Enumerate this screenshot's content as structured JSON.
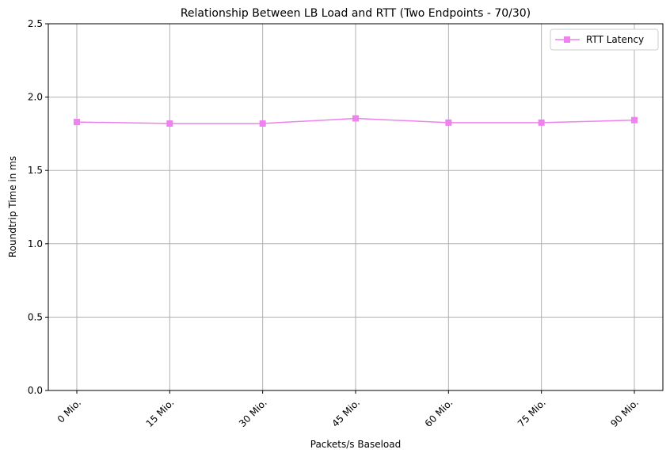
{
  "chart_data": {
    "type": "line",
    "title": "Relationship Between LB Load and RTT (Two Endpoints - 70/30)",
    "xlabel": "Packets/s Baseload",
    "ylabel": "Roundtrip Time in ms",
    "categories": [
      "0 Mio.",
      "15 Mio.",
      "30 Mio.",
      "45 Mio.",
      "60 Mio.",
      "75 Mio.",
      "90 Mio."
    ],
    "series": [
      {
        "name": "RTT Latency",
        "values": [
          1.83,
          1.82,
          1.82,
          1.855,
          1.826,
          1.826,
          1.843
        ],
        "color": "#ee82ee",
        "marker": "square"
      }
    ],
    "ylim": [
      0,
      2.5
    ],
    "yticks": [
      "0.0",
      "0.5",
      "1.0",
      "1.5",
      "2.0",
      "2.5"
    ],
    "grid": true,
    "legend_position": "top-right"
  }
}
